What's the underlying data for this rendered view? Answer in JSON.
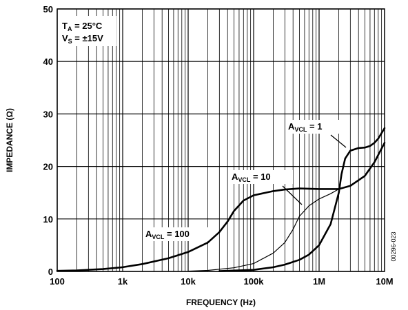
{
  "chart_data": {
    "type": "line",
    "xscale": "log",
    "xlabel": "FREQUENCY (Hz)",
    "ylabel": "IMPEDANCE (Ω)",
    "xlim": [
      100,
      10000000
    ],
    "ylim": [
      0,
      50
    ],
    "x_ticks": [
      100,
      1000,
      10000,
      100000,
      1000000,
      10000000
    ],
    "x_tick_labels": [
      "100",
      "1k",
      "10k",
      "100k",
      "1M",
      "10M"
    ],
    "y_ticks": [
      0,
      10,
      20,
      30,
      40,
      50
    ],
    "y_tick_labels": [
      "0",
      "10",
      "20",
      "30",
      "40",
      "50"
    ],
    "grid": true,
    "conditions": {
      "ta": {
        "main": "T",
        "sub": "A",
        "rest": " = 25°C"
      },
      "vs": {
        "main": "V",
        "sub": "S",
        "rest": " = ±15V"
      }
    },
    "figure_code": "00296-023",
    "series": [
      {
        "name": "AVCL = 100",
        "label": {
          "main": "A",
          "sub": "VCL",
          "rest": " = 100"
        },
        "stroke": 2.6,
        "points": [
          [
            100,
            0.1
          ],
          [
            200,
            0.2
          ],
          [
            500,
            0.45
          ],
          [
            1000,
            0.8
          ],
          [
            2000,
            1.4
          ],
          [
            5000,
            2.5
          ],
          [
            10000,
            3.7
          ],
          [
            20000,
            5.5
          ],
          [
            30000,
            7.5
          ],
          [
            40000,
            9.5
          ],
          [
            50000,
            11.5
          ],
          [
            70000,
            13.5
          ],
          [
            100000,
            14.5
          ],
          [
            200000,
            15.3
          ],
          [
            300000,
            15.6
          ],
          [
            500000,
            15.8
          ],
          [
            1000000,
            15.7
          ],
          [
            2000000,
            15.7
          ],
          [
            3000000,
            16.3
          ],
          [
            5000000,
            18.2
          ],
          [
            7000000,
            20.8
          ],
          [
            10000000,
            24.5
          ]
        ]
      },
      {
        "name": "AVCL = 10",
        "label": {
          "main": "A",
          "sub": "VCL",
          "rest": " = 10"
        },
        "stroke": 1.2,
        "points": [
          [
            10000,
            0.05
          ],
          [
            20000,
            0.2
          ],
          [
            50000,
            0.7
          ],
          [
            100000,
            1.5
          ],
          [
            200000,
            3.5
          ],
          [
            300000,
            5.5
          ],
          [
            400000,
            8
          ],
          [
            500000,
            10.5
          ],
          [
            700000,
            12.5
          ],
          [
            1000000,
            13.8
          ],
          [
            1500000,
            14.8
          ],
          [
            2000000,
            15.7
          ],
          [
            3000000,
            16.3
          ],
          [
            5000000,
            18.2
          ],
          [
            7000000,
            20.8
          ],
          [
            10000000,
            24.5
          ]
        ]
      },
      {
        "name": "AVCL = 1",
        "label": {
          "main": "A",
          "sub": "VCL",
          "rest": " = 1"
        },
        "stroke": 2.6,
        "points": [
          [
            30000,
            0.05
          ],
          [
            100000,
            0.3
          ],
          [
            200000,
            0.8
          ],
          [
            300000,
            1.3
          ],
          [
            500000,
            2.2
          ],
          [
            700000,
            3.2
          ],
          [
            1000000,
            5
          ],
          [
            1500000,
            9
          ],
          [
            2000000,
            15
          ],
          [
            2200000,
            18.5
          ],
          [
            2500000,
            21.5
          ],
          [
            3000000,
            23
          ],
          [
            4000000,
            23.5
          ],
          [
            5000000,
            23.6
          ],
          [
            6000000,
            23.9
          ],
          [
            7000000,
            24.5
          ],
          [
            8000000,
            25.3
          ],
          [
            10000000,
            27.3
          ]
        ]
      }
    ]
  }
}
